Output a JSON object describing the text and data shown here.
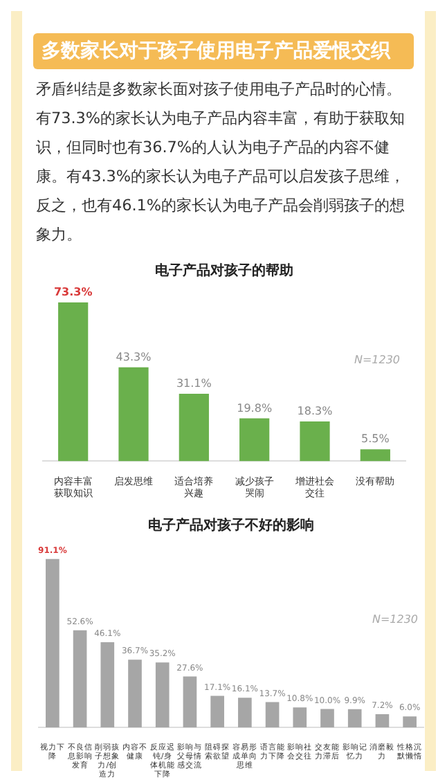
{
  "chart_data": [
    {
      "type": "other",
      "title": "多数家长对于孩子使用电子产品爱恨交织",
      "annotations": [
        "矛盾纠结是多数家长面对孩子使用电子产品时的心情。有73.3%的家长认为电子产品内容丰富，有助于获取知识，但同时也有36.7%的人认为电子产品的内容不健康。有43.3%的家长认为电子产品可以启发孩子思维，反之，也有46.1%的家长认为电子产品会削弱孩子的想象力。"
      ]
    },
    {
      "type": "bar",
      "title": "电子产品对孩子的帮助",
      "categories": [
        "内容丰富获取知识",
        "启发思维",
        "适合培养兴趣",
        "减少孩子哭闹",
        "增进社会交往",
        "没有帮助"
      ],
      "values": [
        73.3,
        43.3,
        31.1,
        19.8,
        18.3,
        5.5
      ],
      "value_labels": [
        "73.3%",
        "43.3%",
        "31.1%",
        "19.8%",
        "18.3%",
        "5.5%"
      ],
      "color": "#6ab04c",
      "annotations": [
        "N=1230"
      ]
    },
    {
      "type": "bar",
      "title": "电子产品对孩子不好的影响",
      "categories": [
        "视力下降",
        "不良信息影响发育",
        "削弱孩子想象力/创造力",
        "内容不健康",
        "反应迟钝/身体机能下降",
        "影响与父母情感交流",
        "阻碍探索欲望",
        "容易形成单向思维",
        "语言能力下降",
        "影响社会交往",
        "交友能力滞后",
        "影响记忆力",
        "消磨毅力",
        "性格沉默懒惰"
      ],
      "values": [
        91.1,
        52.6,
        46.1,
        36.7,
        35.2,
        27.6,
        17.1,
        16.1,
        13.7,
        10.8,
        10.0,
        9.9,
        7.2,
        6.0
      ],
      "value_labels": [
        "91.1%",
        "52.6%",
        "46.1%",
        "36.7%",
        "35.2%",
        "27.6%",
        "17.1%",
        "16.1%",
        "13.7%",
        "10.8%",
        "10.0%",
        "9.9%",
        "7.2%",
        "6.0%"
      ],
      "color": "#a6a6a6",
      "annotations": [
        "N=1230"
      ]
    }
  ]
}
